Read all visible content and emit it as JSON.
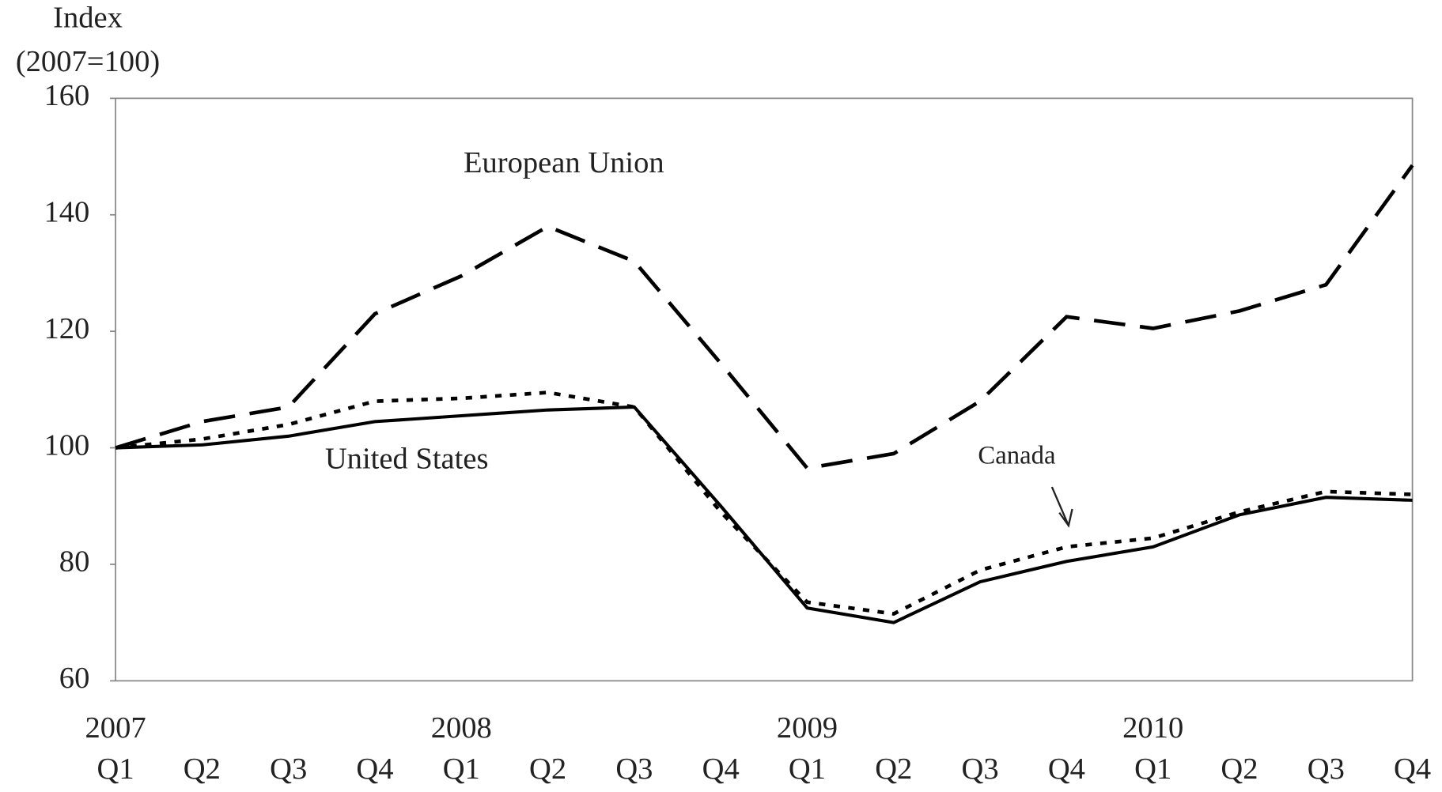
{
  "chart_data": {
    "type": "line",
    "y_label": [
      "Index",
      "(2007=100)"
    ],
    "categories": [
      "Q1",
      "Q2",
      "Q3",
      "Q4",
      "Q1",
      "Q2",
      "Q3",
      "Q4",
      "Q1",
      "Q2",
      "Q3",
      "Q4",
      "Q1",
      "Q2",
      "Q3",
      "Q4"
    ],
    "years": [
      "2007",
      "2008",
      "2009",
      "2010"
    ],
    "ylim": [
      60,
      160
    ],
    "yticks": [
      60,
      80,
      100,
      120,
      140,
      160
    ],
    "series": [
      {
        "name": "European Union",
        "color": "#000000",
        "style": "dashed",
        "values": [
          100,
          104.5,
          107,
          123,
          129.5,
          138,
          132,
          114.5,
          96.5,
          99,
          108,
          122.5,
          120.5,
          123.5,
          128,
          148.5
        ]
      },
      {
        "name": "United States",
        "color": "#000000",
        "style": "solid",
        "values": [
          100,
          100.5,
          102,
          104.5,
          105.5,
          106.5,
          107,
          90,
          72.5,
          70,
          77,
          80.5,
          83,
          88.5,
          91.5,
          91
        ]
      },
      {
        "name": "Canada",
        "color": "#000000",
        "style": "dotted",
        "values": [
          100,
          101.5,
          104,
          108,
          108.5,
          109.5,
          107,
          89,
          73.5,
          71.5,
          79,
          83,
          84.5,
          89,
          92.5,
          92
        ]
      }
    ]
  }
}
